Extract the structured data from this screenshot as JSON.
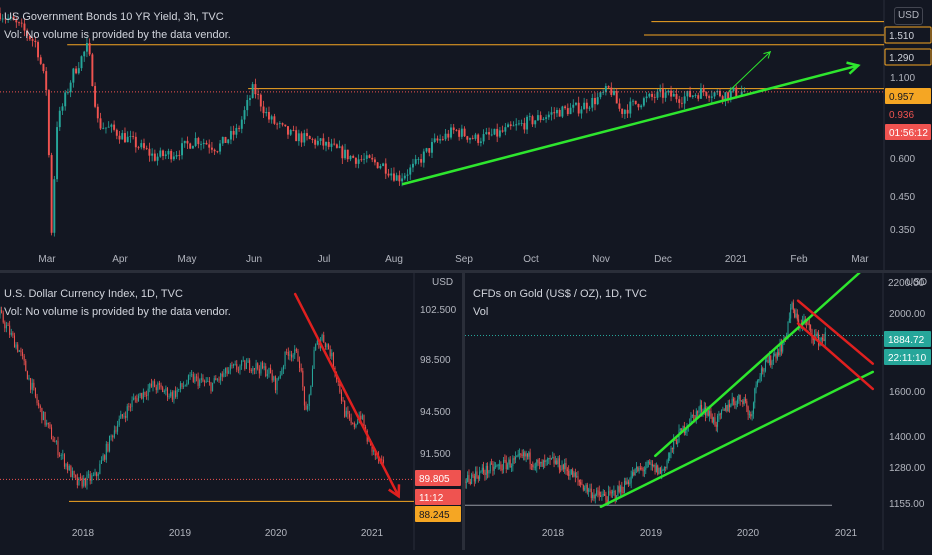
{
  "colors": {
    "background": "#131722",
    "candle_up": "#26a69a",
    "candle_down": "#ef5350",
    "trend_green": "#2ee62e",
    "trend_red": "#e0201f",
    "level_orange": "#f5a623",
    "axis_text": "#b2b5be",
    "grid_divider": "#2a2e39"
  },
  "chart_data": [
    {
      "type": "candlestick",
      "title": "US Government Bonds 10 YR Yield, 3h, TVC",
      "subtitle": "Vol: No volume is provided by the data vendor.",
      "currency_label": "USD",
      "scale": "log",
      "ylim": [
        0.33,
        1.75
      ],
      "x_ticks": [
        "Mar",
        "Apr",
        "May",
        "Jun",
        "Jul",
        "Aug",
        "Sep",
        "Oct",
        "Nov",
        "Dec",
        "2021",
        "Feb",
        "Mar"
      ],
      "y_ticks": [
        "1.100",
        "0.600",
        "0.450",
        "0.350"
      ],
      "price_tags": [
        {
          "label": "1.510",
          "value": 1.51,
          "style": "orange-outline"
        },
        {
          "label": "1.290",
          "value": 1.29,
          "style": "orange-outline"
        },
        {
          "label": "0.957",
          "value": 0.957,
          "style": "orange-fill"
        },
        {
          "label": "0.936",
          "value": 0.936,
          "style": "red-text"
        },
        {
          "label": "01:56:12",
          "value": 0.79,
          "style": "red-fill"
        }
      ],
      "path": [
        [
          0,
          1.6
        ],
        [
          4,
          1.45
        ],
        [
          7,
          1.3
        ],
        [
          9,
          0.95
        ],
        [
          10,
          0.36
        ],
        [
          11,
          0.75
        ],
        [
          14,
          1.05
        ],
        [
          17,
          1.28
        ],
        [
          19,
          0.75
        ],
        [
          22,
          0.72
        ],
        [
          26,
          0.66
        ],
        [
          30,
          0.6
        ],
        [
          34,
          0.62
        ],
        [
          38,
          0.68
        ],
        [
          42,
          0.64
        ],
        [
          46,
          0.72
        ],
        [
          49,
          0.96
        ],
        [
          52,
          0.78
        ],
        [
          56,
          0.7
        ],
        [
          62,
          0.66
        ],
        [
          68,
          0.6
        ],
        [
          74,
          0.57
        ],
        [
          77,
          0.52
        ],
        [
          80,
          0.56
        ],
        [
          84,
          0.66
        ],
        [
          88,
          0.72
        ],
        [
          92,
          0.68
        ],
        [
          96,
          0.7
        ],
        [
          100,
          0.74
        ],
        [
          104,
          0.78
        ],
        [
          108,
          0.82
        ],
        [
          112,
          0.84
        ],
        [
          116,
          0.9
        ],
        [
          118,
          0.96
        ],
        [
          120,
          0.82
        ],
        [
          124,
          0.88
        ],
        [
          128,
          0.92
        ],
        [
          132,
          0.9
        ],
        [
          136,
          0.94
        ],
        [
          140,
          0.92
        ],
        [
          144,
          0.94
        ]
      ],
      "x_max": 171,
      "levels": [
        {
          "value": 1.51,
          "x_from": 126
        },
        {
          "value": 1.29,
          "x_from": 13
        },
        {
          "value": 0.957,
          "x_from": 48
        }
      ],
      "trendlines": [
        {
          "color": "green",
          "from": [
            78,
            0.5
          ],
          "to": [
            166,
            1.12
          ],
          "arrow": true
        },
        {
          "color": "green",
          "from": [
            141,
            0.94
          ],
          "to": [
            149,
            1.23
          ],
          "arrow": true,
          "thin": true
        }
      ]
    },
    {
      "type": "candlestick",
      "title": "U.S. Dollar Currency Index, 1D, TVC",
      "subtitle": "Vol: No volume is provided by the data vendor.",
      "currency_label": "USD",
      "ylim": [
        87.2,
        104.5
      ],
      "x_ticks": [
        "2018",
        "2019",
        "2020",
        "2021"
      ],
      "y_ticks": [
        "102.500",
        "98.500",
        "94.500",
        "91.500"
      ],
      "price_tags": [
        {
          "label": "89.805",
          "value": 89.805,
          "style": "red-fill"
        },
        {
          "label": "11:12",
          "value": 88.85,
          "style": "red-fill"
        },
        {
          "label": "88.245",
          "value": 88.245,
          "style": "orange-fill"
        }
      ],
      "path": [
        [
          0,
          101.5
        ],
        [
          5,
          99
        ],
        [
          10,
          95
        ],
        [
          15,
          92
        ],
        [
          20,
          89.5
        ],
        [
          25,
          90
        ],
        [
          30,
          93.5
        ],
        [
          35,
          95.5
        ],
        [
          40,
          96.5
        ],
        [
          45,
          95.8
        ],
        [
          50,
          97
        ],
        [
          55,
          96.5
        ],
        [
          60,
          97.6
        ],
        [
          65,
          98
        ],
        [
          70,
          97.5
        ],
        [
          72,
          96.5
        ],
        [
          75,
          99
        ],
        [
          78,
          98.5
        ],
        [
          80,
          94
        ],
        [
          82,
          99
        ],
        [
          84,
          100
        ],
        [
          86,
          99
        ],
        [
          88,
          97
        ],
        [
          90,
          94.5
        ],
        [
          92,
          93.5
        ],
        [
          94,
          94.5
        ],
        [
          96,
          92.5
        ],
        [
          98,
          91.5
        ],
        [
          100,
          90.6
        ]
      ],
      "x_max": 108,
      "levels": [
        {
          "value": 88.245,
          "x_from": 18
        }
      ],
      "trendlines": [
        {
          "color": "red",
          "from": [
            77,
            103
          ],
          "to": [
            104,
            88.6
          ],
          "arrow": true
        }
      ]
    },
    {
      "type": "candlestick",
      "title": "CFDs on Gold (US$ / OZ), 1D, TVC",
      "subtitle": "Vol",
      "currency_label": "USD",
      "scale": "log",
      "ylim": [
        1130,
        2250
      ],
      "x_ticks": [
        "2018",
        "2019",
        "2020",
        "2021"
      ],
      "y_ticks": [
        "2000.00",
        "1600.00",
        "1400.00",
        "1280.00",
        "1155.00"
      ],
      "price_tags": [
        {
          "label": "2200.00",
          "value": 2200,
          "style": "axis-clipped"
        },
        {
          "label": "1884.72",
          "value": 1884.72,
          "style": "teal-fill"
        },
        {
          "label": "22:11:10",
          "value": 1790,
          "style": "teal-fill"
        }
      ],
      "path": [
        [
          0,
          1250
        ],
        [
          5,
          1280
        ],
        [
          10,
          1300
        ],
        [
          15,
          1320
        ],
        [
          18,
          1340
        ],
        [
          22,
          1300
        ],
        [
          26,
          1320
        ],
        [
          30,
          1290
        ],
        [
          34,
          1240
        ],
        [
          38,
          1200
        ],
        [
          42,
          1190
        ],
        [
          46,
          1220
        ],
        [
          50,
          1280
        ],
        [
          54,
          1300
        ],
        [
          58,
          1280
        ],
        [
          62,
          1400
        ],
        [
          66,
          1480
        ],
        [
          70,
          1540
        ],
        [
          74,
          1470
        ],
        [
          78,
          1560
        ],
        [
          82,
          1580
        ],
        [
          84,
          1490
        ],
        [
          86,
          1680
        ],
        [
          90,
          1760
        ],
        [
          94,
          1850
        ],
        [
          96,
          2050
        ],
        [
          98,
          1950
        ],
        [
          100,
          1960
        ],
        [
          102,
          1900
        ],
        [
          104,
          1860
        ],
        [
          106,
          1880
        ]
      ],
      "x_max": 123,
      "levels": [
        {
          "value": 1165,
          "x_from": 0,
          "x_to": 108
        }
      ],
      "trendlines": [
        {
          "color": "green",
          "from": [
            40,
            1160
          ],
          "to": [
            120,
            1700
          ]
        },
        {
          "color": "green",
          "from": [
            56,
            1340
          ],
          "to": [
            116,
            2250
          ]
        },
        {
          "color": "red",
          "from": [
            98,
            2080
          ],
          "to": [
            120,
            1740
          ]
        },
        {
          "color": "red",
          "from": [
            98,
            1950
          ],
          "to": [
            120,
            1620
          ]
        }
      ]
    }
  ]
}
